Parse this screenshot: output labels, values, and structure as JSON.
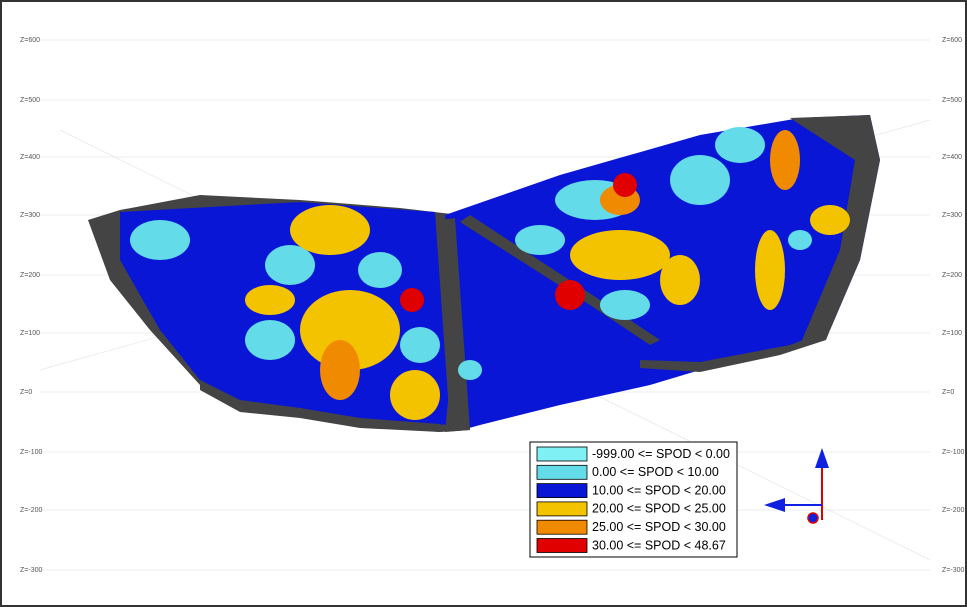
{
  "view": {
    "z_labels_left": [
      "Z=600",
      "Z=500",
      "Z=400",
      "Z=300",
      "Z=200",
      "Z=100",
      "Z=0",
      "Z=-100",
      "Z=-200",
      "Z=-300"
    ],
    "z_labels_right": [
      "Z=600",
      "Z=500",
      "Z=400",
      "Z=300",
      "Z=200",
      "Z=100",
      "Z=0",
      "Z=-100",
      "Z=-200",
      "Z=-300"
    ]
  },
  "legend": {
    "items": [
      {
        "label": "-999.00 <= SPOD < 0.00",
        "color": "#7ff0f4"
      },
      {
        "label": "0.00 <= SPOD < 10.00",
        "color": "#63dbe8"
      },
      {
        "label": "10.00 <= SPOD < 20.00",
        "color": "#0a16d6"
      },
      {
        "label": "20.00 <= SPOD < 25.00",
        "color": "#f4c300"
      },
      {
        "label": "25.00 <= SPOD < 30.00",
        "color": "#f08a00"
      },
      {
        "label": "30.00 <= SPOD < 48.67",
        "color": "#e00000"
      }
    ]
  }
}
